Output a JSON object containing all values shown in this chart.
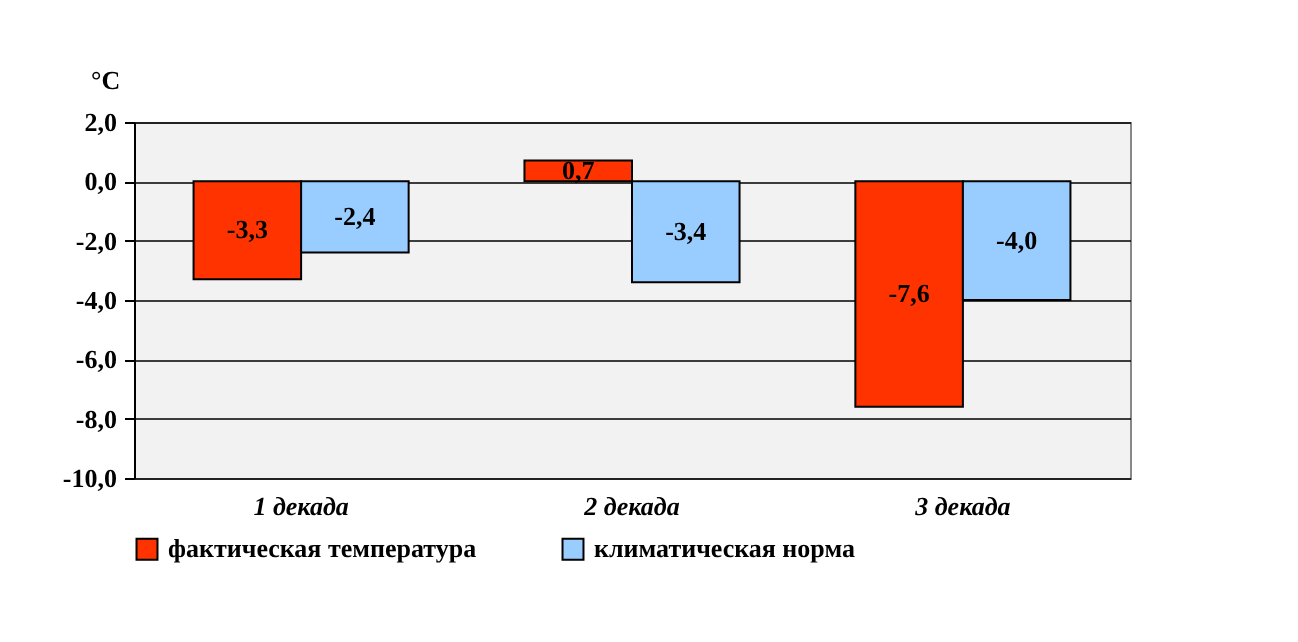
{
  "chart_data": {
    "type": "bar",
    "ylabel": "°C",
    "categories": [
      "1 декада",
      "2 декада",
      "3 декада"
    ],
    "series": [
      {
        "name": "фактическая температура",
        "color": "#ff3300",
        "values": [
          -3.3,
          0.7,
          -7.6
        ],
        "value_labels": [
          "-3,3",
          "0,7",
          "-7,6"
        ]
      },
      {
        "name": "климатическая норма",
        "color": "#99ccff",
        "values": [
          -2.4,
          -3.4,
          -4.0
        ],
        "value_labels": [
          "-2,4",
          "-3,4",
          "-4,0"
        ]
      }
    ],
    "ylim": [
      -10,
      2
    ],
    "yticks": [
      {
        "value": -10,
        "label": "-10,0"
      },
      {
        "value": -8,
        "label": "-8,0"
      },
      {
        "value": -6,
        "label": "-6,0"
      },
      {
        "value": -4,
        "label": "-4,0"
      },
      {
        "value": -2,
        "label": "-2,0"
      },
      {
        "value": 0,
        "label": "0,0"
      },
      {
        "value": 2,
        "label": "2,0"
      }
    ],
    "grid": "y",
    "legend": "bottom"
  }
}
